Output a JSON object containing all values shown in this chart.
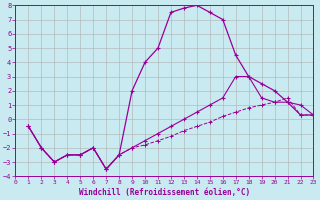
{
  "xlabel": "Windchill (Refroidissement éolien,°C)",
  "background_color": "#c8eaf0",
  "grid_color": "#b0b0b0",
  "line_color": "#990099",
  "xmin": 0,
  "xmax": 23,
  "ymin": -4,
  "ymax": 8,
  "line1_x": [
    1,
    2,
    3,
    4,
    5,
    6,
    7,
    8,
    9,
    10,
    11,
    12,
    13,
    14,
    15,
    16,
    17,
    18,
    19,
    20,
    21,
    22,
    23
  ],
  "line1_y": [
    -0.5,
    -2.0,
    -3.0,
    -2.5,
    -2.5,
    -2.0,
    -3.5,
    -2.5,
    2.0,
    4.0,
    5.0,
    7.5,
    7.8,
    8.0,
    7.5,
    7.0,
    4.5,
    3.0,
    2.5,
    2.0,
    1.2,
    0.3,
    0.3
  ],
  "line2_x": [
    1,
    2,
    3,
    4,
    5,
    6,
    7,
    8,
    9,
    10,
    11,
    12,
    13,
    14,
    15,
    16,
    17,
    18,
    19,
    20,
    21,
    22,
    23
  ],
  "line2_y": [
    -0.5,
    -2.0,
    -3.0,
    -2.5,
    -2.5,
    -2.0,
    -3.5,
    -2.5,
    -2.0,
    -1.5,
    -1.0,
    -0.5,
    0.0,
    0.5,
    1.0,
    1.5,
    3.0,
    3.0,
    1.5,
    1.2,
    1.2,
    1.0,
    0.3
  ],
  "line3_x": [
    1,
    2,
    3,
    4,
    5,
    6,
    7,
    8,
    9,
    10,
    11,
    12,
    13,
    14,
    15,
    16,
    17,
    18,
    19,
    20,
    21,
    22,
    23
  ],
  "line3_y": [
    -0.5,
    -2.0,
    -3.0,
    -2.5,
    -2.5,
    -2.0,
    -3.5,
    -2.5,
    -2.0,
    -1.8,
    -1.5,
    -1.2,
    -0.8,
    -0.5,
    -0.2,
    0.2,
    0.5,
    0.8,
    1.0,
    1.2,
    1.5,
    0.3,
    0.3
  ]
}
